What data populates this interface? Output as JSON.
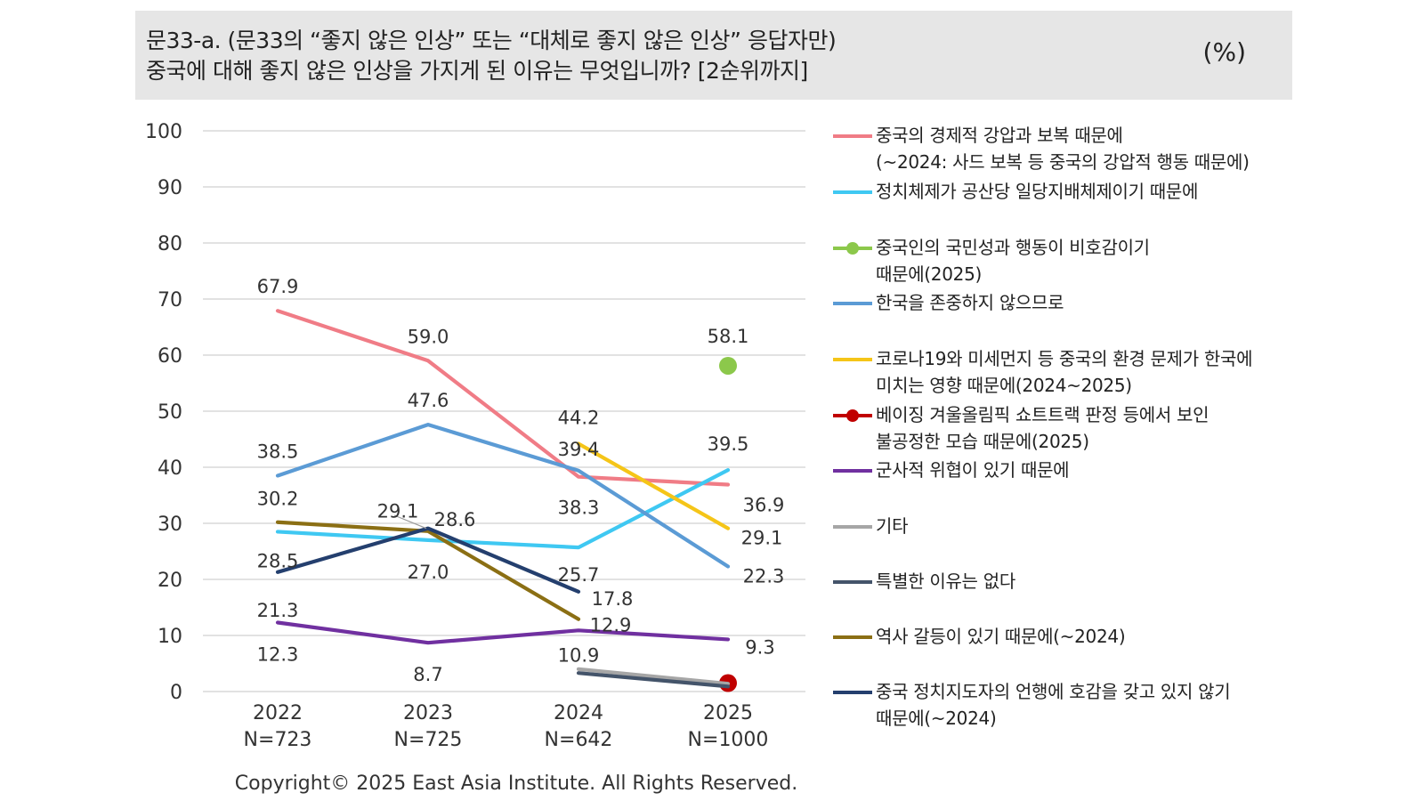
{
  "header": {
    "title_line1": "문33-a. (문33의 “좋지 않은 인상” 또는 “대체로 좋지 않은 인상” 응답자만)",
    "title_line2": "중국에 대해 좋지 않은 인상을 가지게 된 이유는 무엇입니까? [2순위까지]",
    "unit": "(%)"
  },
  "copyright": "Copyright© 2025 East Asia Institute. All Rights Reserved.",
  "chart_data": {
    "type": "line",
    "x": [
      "2022",
      "2023",
      "2024",
      "2025"
    ],
    "x_sublabels": [
      "N=723",
      "N=725",
      "N=642",
      "N=1000"
    ],
    "ylim": [
      0,
      100
    ],
    "yticks": [
      0,
      10,
      20,
      30,
      40,
      50,
      60,
      70,
      80,
      90,
      100
    ],
    "grid": true,
    "legend_placement": "right",
    "series": [
      {
        "name": "중국의 경제적 강압과 보복 때문에\n(~2024: 사드 보복 등 중국의 강압적 행동 때문에)",
        "color": "#f07c86",
        "marker": "none",
        "values": [
          67.9,
          59.0,
          38.3,
          36.9
        ],
        "labels": [
          "67.9",
          "59.0",
          "38.3",
          "36.9"
        ]
      },
      {
        "name": "정치체제가 공산당 일당지배체제이기 때문에",
        "color": "#3fc8f2",
        "marker": "none",
        "values": [
          28.5,
          27.0,
          25.7,
          39.5
        ],
        "labels": [
          "28.5",
          "27.0",
          "25.7",
          "39.5"
        ]
      },
      {
        "name": "중국인의 국민성과 행동이 비호감이기\n때문에(2025)",
        "color": "#8cc84b",
        "marker": "dot",
        "values": [
          null,
          null,
          null,
          58.1
        ],
        "labels": [
          null,
          null,
          null,
          "58.1"
        ]
      },
      {
        "name": "한국을 존중하지 않으므로",
        "color": "#5b9bd5",
        "marker": "none",
        "values": [
          38.5,
          47.6,
          39.4,
          22.3
        ],
        "labels": [
          "38.5",
          "47.6",
          "39.4",
          "22.3"
        ]
      },
      {
        "name": "코로나19와 미세먼지 등 중국의 환경 문제가 한국에\n미치는 영향 때문에(2024~2025)",
        "color": "#f5c518",
        "marker": "none",
        "values": [
          null,
          null,
          44.2,
          29.1
        ],
        "labels": [
          null,
          null,
          "44.2",
          "29.1"
        ]
      },
      {
        "name": "베이징 겨울올림픽 쇼트트랙 판정 등에서 보인\n불공정한 모습 때문에(2025)",
        "color": "#c00000",
        "marker": "dot",
        "values": [
          null,
          null,
          null,
          1.5
        ],
        "labels": [
          null,
          null,
          null,
          null
        ]
      },
      {
        "name": "군사적 위협이 있기 때문에",
        "color": "#7030a0",
        "marker": "none",
        "values": [
          12.3,
          8.7,
          10.9,
          9.3
        ],
        "labels": [
          "12.3",
          "8.7",
          "10.9",
          "9.3"
        ]
      },
      {
        "name": "기타",
        "color": "#a6a6a6",
        "marker": "none",
        "values": [
          null,
          null,
          4.0,
          1.4
        ],
        "labels": [
          null,
          null,
          null,
          null
        ]
      },
      {
        "name": "특별한 이유는 없다",
        "color": "#44546a",
        "marker": "none",
        "values": [
          null,
          null,
          3.3,
          0.9
        ],
        "labels": [
          null,
          null,
          null,
          null
        ]
      },
      {
        "name": "역사 갈등이 있기 때문에(~2024)",
        "color": "#8b6f14",
        "marker": "none",
        "values": [
          30.2,
          28.6,
          12.9,
          null
        ],
        "labels": [
          "30.2",
          "28.6",
          "12.9",
          null
        ]
      },
      {
        "name": "중국 정치지도자의 언행에 호감을 갖고 있지 않기\n때문에(~2024)",
        "color": "#243f6e",
        "marker": "none",
        "values": [
          21.3,
          29.1,
          17.8,
          null
        ],
        "labels": [
          "21.3",
          "29.1",
          "17.8",
          null
        ]
      }
    ]
  }
}
